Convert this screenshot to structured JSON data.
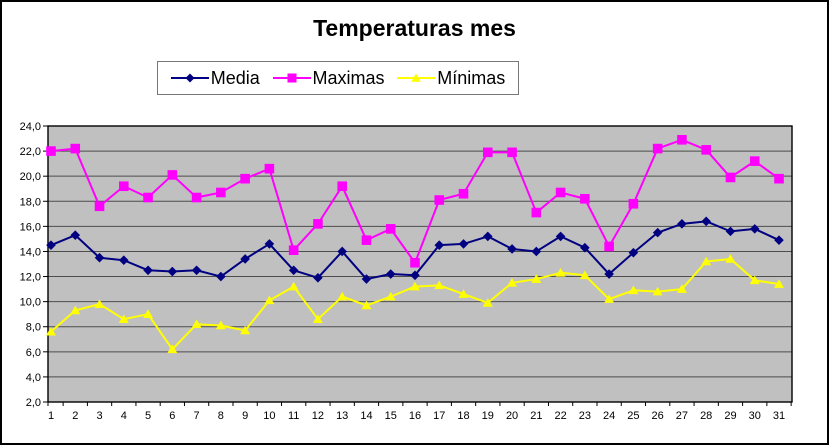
{
  "title": "Temperaturas mes",
  "chart_data": {
    "type": "line",
    "title": "Temperaturas mes",
    "xlabel": "",
    "ylabel": "",
    "x": [
      1,
      2,
      3,
      4,
      5,
      6,
      7,
      8,
      9,
      10,
      11,
      12,
      13,
      14,
      15,
      16,
      17,
      18,
      19,
      20,
      21,
      22,
      23,
      24,
      25,
      26,
      27,
      28,
      29,
      30,
      31
    ],
    "x_tick_labels": [
      "1",
      "2",
      "3",
      "4",
      "5",
      "6",
      "7",
      "8",
      "9",
      "10",
      "11",
      "12",
      "13",
      "14",
      "15",
      "16",
      "17",
      "18",
      "19",
      "20",
      "21",
      "22",
      "23",
      "24",
      "25",
      "26",
      "27",
      "28",
      "29",
      "30",
      "31"
    ],
    "y_axis": {
      "min": 2.0,
      "max": 24.0,
      "step": 2.0,
      "tick_labels": [
        "24,0",
        "22,0",
        "20,0",
        "18,0",
        "16,0",
        "14,0",
        "12,0",
        "10,0",
        "8,0",
        "6,0",
        "4,0",
        "2,0"
      ]
    },
    "grid": true,
    "legend_position": "top",
    "plot_background": "#C0C0C0",
    "gridline_color": "#4d4d4d",
    "series": [
      {
        "name": "Media",
        "color": "#000080",
        "marker": "diamond",
        "values": [
          14.5,
          15.3,
          13.5,
          13.3,
          12.5,
          12.4,
          12.5,
          12.0,
          13.4,
          14.6,
          12.5,
          11.9,
          14.0,
          11.8,
          12.2,
          12.1,
          14.5,
          14.6,
          15.2,
          14.2,
          14.0,
          15.2,
          14.3,
          12.2,
          13.9,
          15.5,
          16.2,
          16.4,
          15.6,
          15.8,
          14.9
        ]
      },
      {
        "name": "Maximas",
        "color": "#FF00FF",
        "marker": "square",
        "values": [
          22.0,
          22.2,
          17.6,
          19.2,
          18.3,
          20.1,
          18.3,
          18.7,
          19.8,
          20.6,
          14.1,
          16.2,
          19.2,
          14.9,
          15.8,
          13.1,
          18.1,
          18.6,
          21.9,
          21.9,
          17.1,
          18.7,
          18.2,
          14.4,
          17.8,
          22.2,
          22.9,
          22.1,
          19.9,
          21.2,
          19.8
        ]
      },
      {
        "name": "Mínimas",
        "color": "#FFFF00",
        "marker": "triangle",
        "values": [
          7.6,
          9.3,
          9.8,
          8.6,
          9.0,
          6.2,
          8.2,
          8.1,
          7.7,
          10.1,
          11.2,
          8.6,
          10.4,
          9.7,
          10.4,
          11.2,
          11.3,
          10.6,
          9.9,
          11.5,
          11.8,
          12.3,
          12.1,
          10.2,
          10.9,
          10.8,
          11.0,
          13.2,
          13.4,
          11.7,
          11.4
        ]
      }
    ]
  }
}
